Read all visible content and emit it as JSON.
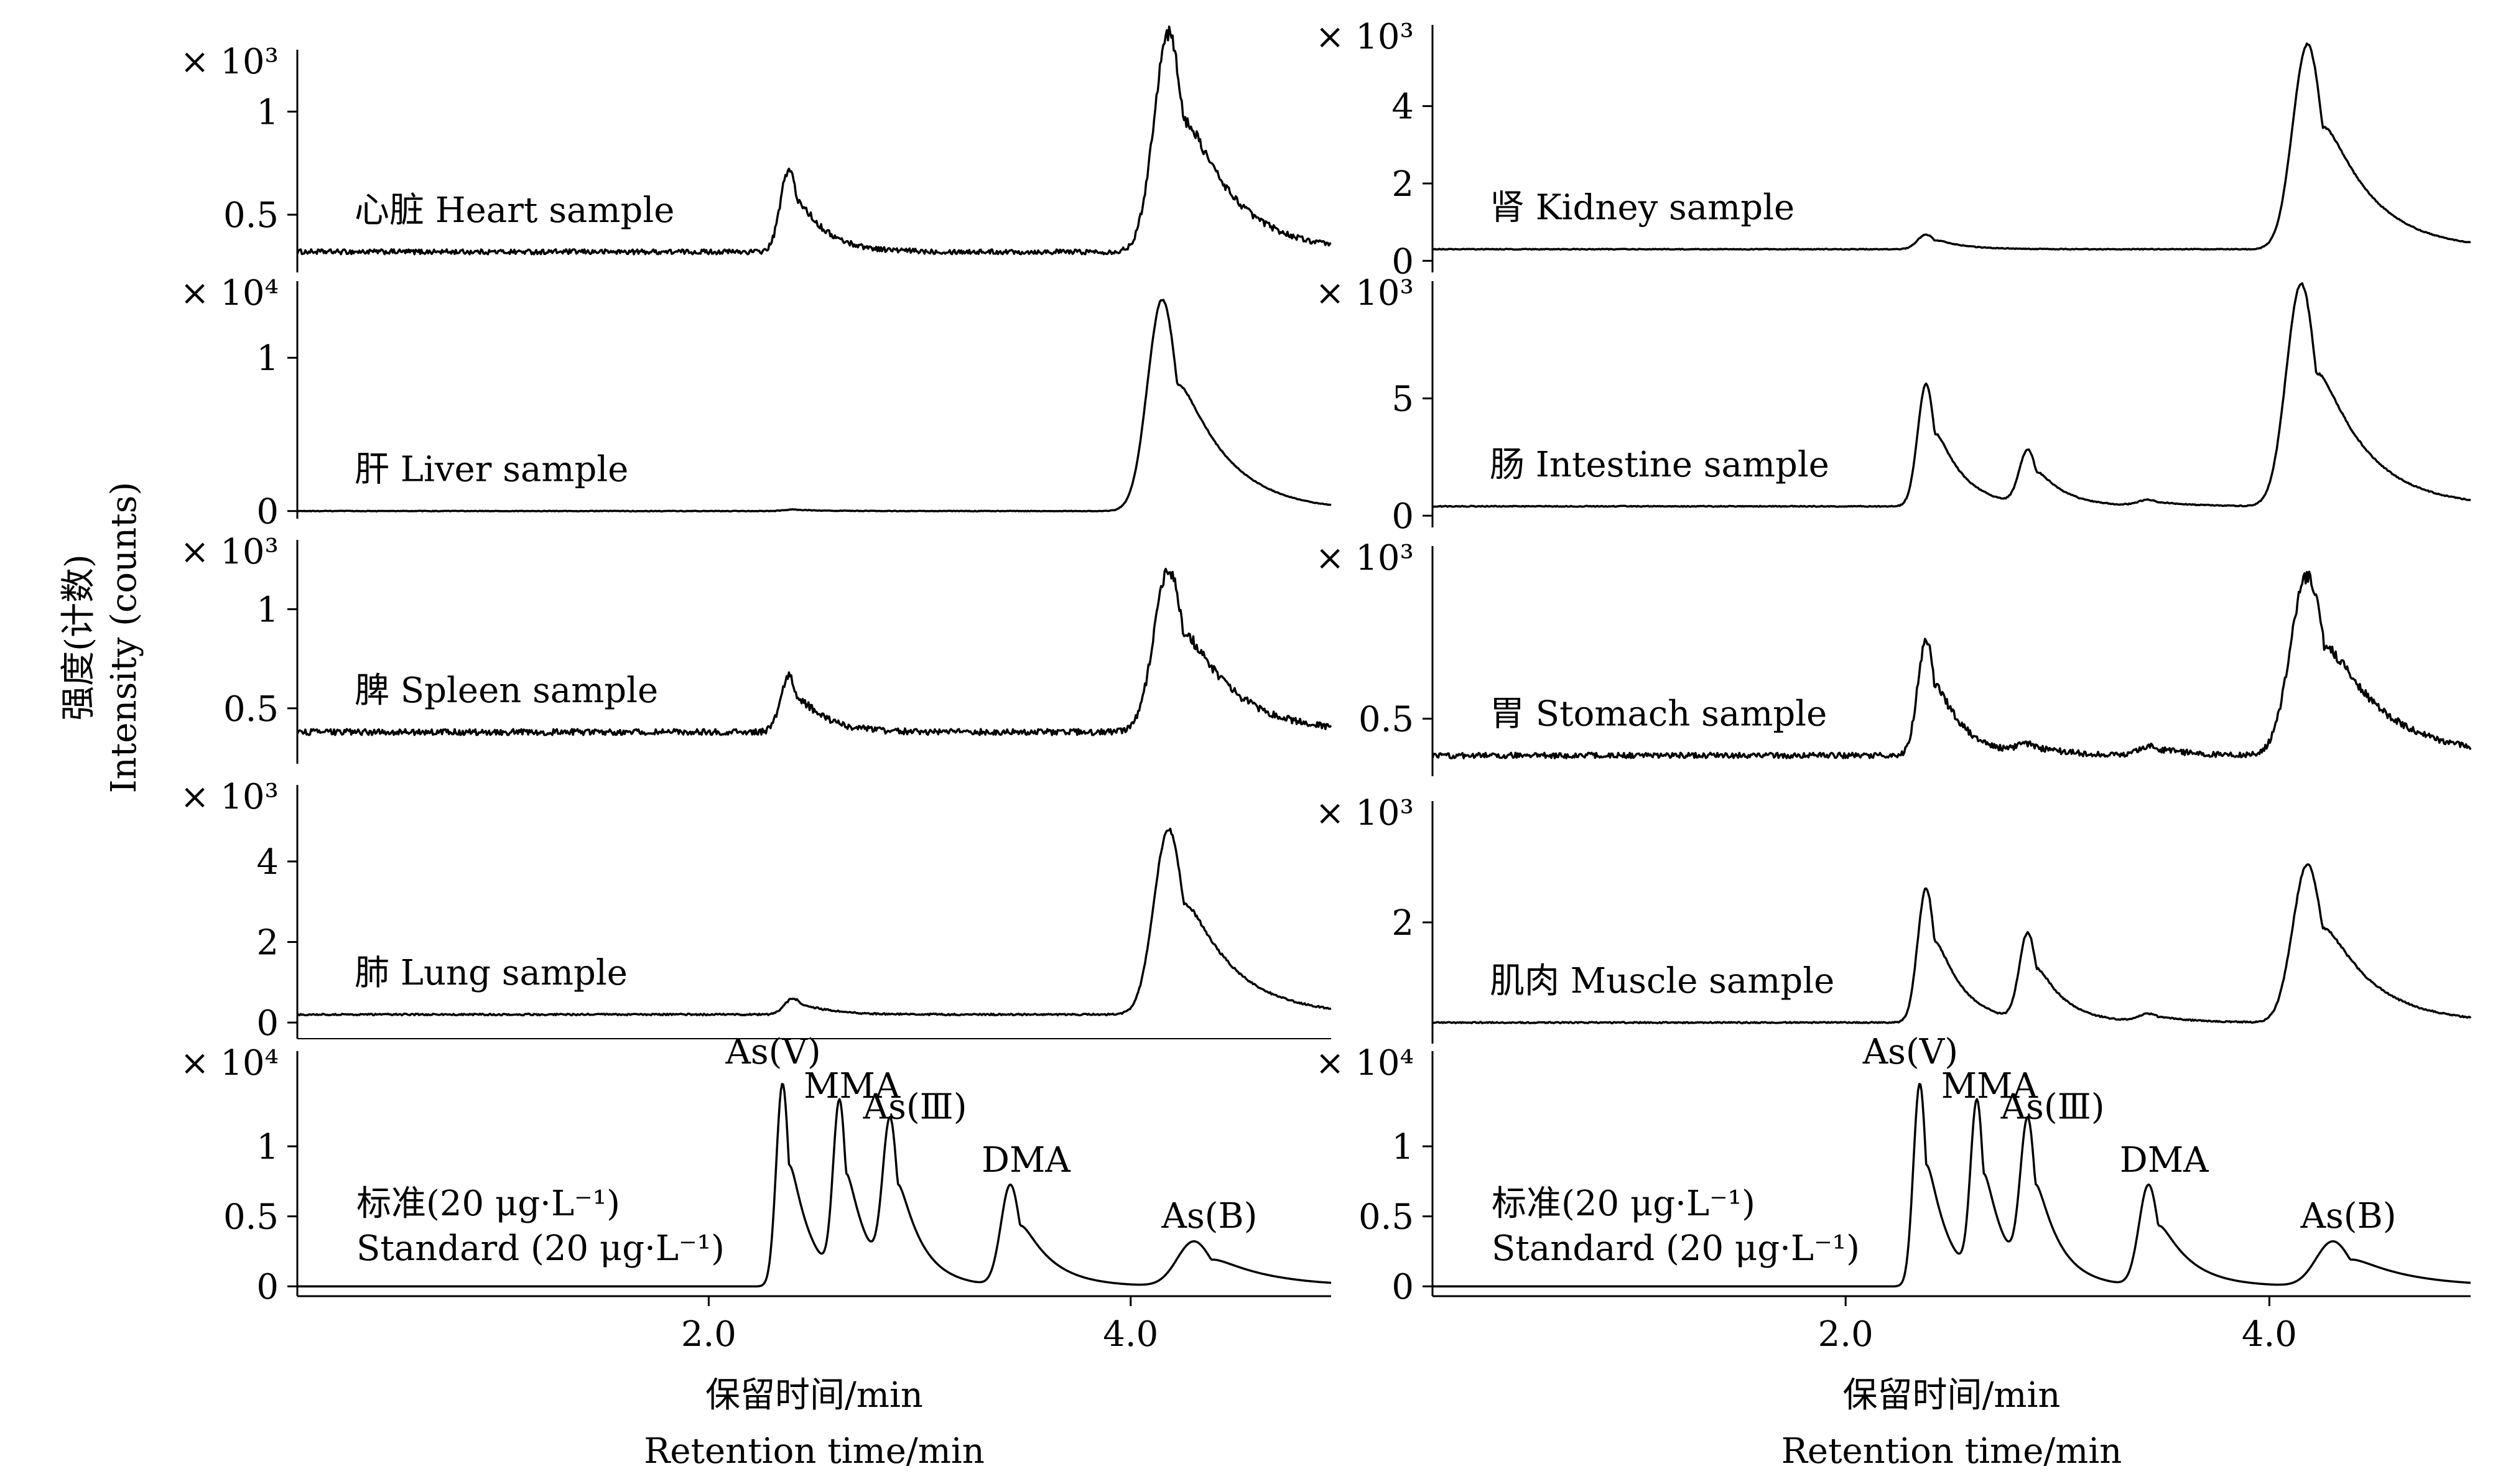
{
  "figure": {
    "y_axis_label_cn": "强度(计数)",
    "y_axis_label_en": "Intensity (counts)"
  },
  "chart_data": [
    {
      "type": "line",
      "column": "left",
      "row": 0,
      "sample_label": "心脏 Heart sample",
      "multiplier_label": "× 10³",
      "yticks": [
        {
          "value": 0.5,
          "label": "0.5"
        },
        {
          "value": 1,
          "label": "1"
        }
      ],
      "ylim": [
        0.22,
        1.3
      ],
      "xlim": [
        0.05,
        4.95
      ],
      "baseline": 0.32,
      "noise": 0.012,
      "peaks": [
        {
          "rt": 2.38,
          "height": 0.4,
          "width": 0.04
        },
        {
          "rt": 4.18,
          "height": 1.06,
          "width": 0.07
        }
      ]
    },
    {
      "type": "line",
      "column": "left",
      "row": 1,
      "sample_label": "肝 Liver sample",
      "multiplier_label": "× 10⁴",
      "yticks": [
        {
          "value": 0,
          "label": "0"
        },
        {
          "value": 1,
          "label": "1"
        }
      ],
      "ylim": [
        -0.05,
        1.5
      ],
      "xlim": [
        0.05,
        4.95
      ],
      "baseline": 0.0,
      "noise": 0.002,
      "peaks": [
        {
          "rt": 2.4,
          "height": 0.01,
          "width": 0.04
        },
        {
          "rt": 4.15,
          "height": 1.38,
          "width": 0.07
        }
      ]
    },
    {
      "type": "line",
      "column": "left",
      "row": 2,
      "sample_label": "脾 Spleen sample",
      "multiplier_label": "× 10³",
      "yticks": [
        {
          "value": 0.5,
          "label": "0.5"
        },
        {
          "value": 1,
          "label": "1"
        }
      ],
      "ylim": [
        0.22,
        1.35
      ],
      "xlim": [
        0.05,
        4.95
      ],
      "baseline": 0.38,
      "noise": 0.015,
      "peaks": [
        {
          "rt": 2.38,
          "height": 0.28,
          "width": 0.04
        },
        {
          "rt": 4.18,
          "height": 0.82,
          "width": 0.07
        }
      ]
    },
    {
      "type": "line",
      "column": "left",
      "row": 3,
      "sample_label": "肺 Lung sample",
      "multiplier_label": "× 10³",
      "yticks": [
        {
          "value": 0,
          "label": "0"
        },
        {
          "value": 2,
          "label": "2"
        },
        {
          "value": 4,
          "label": "4"
        }
      ],
      "ylim": [
        -0.4,
        5.9
      ],
      "xlim": [
        0.05,
        4.95
      ],
      "baseline": 0.2,
      "noise": 0.02,
      "peaks": [
        {
          "rt": 2.4,
          "height": 0.4,
          "width": 0.04
        },
        {
          "rt": 4.18,
          "height": 4.6,
          "width": 0.07
        }
      ]
    },
    {
      "type": "line",
      "column": "left",
      "row": 4,
      "standard": true,
      "sample_label": "标准(20 μg·L⁻¹)",
      "sample_label_2": "Standard (20 μg·L⁻¹)",
      "multiplier_label": "× 10⁴",
      "yticks": [
        {
          "value": 0,
          "label": "0"
        },
        {
          "value": 0.5,
          "label": "0.5"
        },
        {
          "value": 1,
          "label": "1"
        }
      ],
      "ylim": [
        -0.07,
        1.68
      ],
      "xlim": [
        0.05,
        4.95
      ],
      "baseline": 0.0,
      "noise": 0.0,
      "peaks": [
        {
          "rt": 2.35,
          "height": 1.45,
          "width": 0.03,
          "label": "As(Ⅴ)"
        },
        {
          "rt": 2.62,
          "height": 1.25,
          "width": 0.03,
          "label": "MMA"
        },
        {
          "rt": 2.86,
          "height": 1.1,
          "width": 0.035,
          "label": "As(Ⅲ)"
        },
        {
          "rt": 3.43,
          "height": 0.72,
          "width": 0.045,
          "label": "DMA"
        },
        {
          "rt": 4.3,
          "height": 0.32,
          "width": 0.08,
          "label": "As(B)"
        }
      ],
      "xticks": [
        {
          "value": 2.0,
          "label": "2.0"
        },
        {
          "value": 4.0,
          "label": "4.0"
        }
      ],
      "xlabel_cn": "保留时间/min",
      "xlabel_en": "Retention time/min"
    },
    {
      "type": "line",
      "column": "right",
      "row": 0,
      "sample_label": "肾 Kidney sample",
      "multiplier_label": "× 10³",
      "yticks": [
        {
          "value": 0,
          "label": "0"
        },
        {
          "value": 2,
          "label": "2"
        },
        {
          "value": 4,
          "label": "4"
        }
      ],
      "ylim": [
        -0.3,
        6.1
      ],
      "xlim": [
        0.05,
        4.95
      ],
      "baseline": 0.3,
      "noise": 0.01,
      "peaks": [
        {
          "rt": 2.38,
          "height": 0.38,
          "width": 0.04
        },
        {
          "rt": 4.18,
          "height": 5.3,
          "width": 0.07
        }
      ]
    },
    {
      "type": "line",
      "column": "right",
      "row": 1,
      "sample_label": "肠 Intestine sample",
      "multiplier_label": "× 10³",
      "yticks": [
        {
          "value": 0,
          "label": "0"
        },
        {
          "value": 5,
          "label": "5"
        }
      ],
      "ylim": [
        -0.5,
        10.0
      ],
      "xlim": [
        0.05,
        4.95
      ],
      "baseline": 0.4,
      "noise": 0.02,
      "peaks": [
        {
          "rt": 2.38,
          "height": 5.2,
          "width": 0.04
        },
        {
          "rt": 2.86,
          "height": 2.3,
          "width": 0.04
        },
        {
          "rt": 3.43,
          "height": 0.25,
          "width": 0.05
        },
        {
          "rt": 4.15,
          "height": 9.5,
          "width": 0.07
        }
      ]
    },
    {
      "type": "line",
      "column": "right",
      "row": 2,
      "sample_label": "胃 Stomach sample",
      "multiplier_label": "× 10³",
      "yticks": [
        {
          "value": 0.5,
          "label": "0.5"
        }
      ],
      "ylim": [
        0.25,
        1.25
      ],
      "xlim": [
        0.05,
        4.95
      ],
      "baseline": 0.34,
      "noise": 0.012,
      "peaks": [
        {
          "rt": 2.38,
          "height": 0.5,
          "width": 0.04
        },
        {
          "rt": 2.86,
          "height": 0.04,
          "width": 0.05
        },
        {
          "rt": 3.43,
          "height": 0.04,
          "width": 0.05
        },
        {
          "rt": 4.18,
          "height": 0.78,
          "width": 0.08
        }
      ]
    },
    {
      "type": "line",
      "column": "right",
      "row": 3,
      "sample_label": "肌肉 Muscle sample",
      "multiplier_label": "× 10³",
      "yticks": [
        {
          "value": 2,
          "label": "2"
        }
      ],
      "ylim": [
        -0.3,
        4.3
      ],
      "xlim": [
        0.05,
        4.95
      ],
      "baseline": 0.1,
      "noise": 0.012,
      "peaks": [
        {
          "rt": 2.38,
          "height": 2.55,
          "width": 0.04
        },
        {
          "rt": 2.86,
          "height": 1.65,
          "width": 0.04
        },
        {
          "rt": 3.43,
          "height": 0.15,
          "width": 0.05
        },
        {
          "rt": 4.18,
          "height": 3.0,
          "width": 0.07
        }
      ]
    },
    {
      "type": "line",
      "column": "right",
      "row": 4,
      "standard": true,
      "sample_label": "标准(20 μg·L⁻¹)",
      "sample_label_2": "Standard (20 μg·L⁻¹)",
      "multiplier_label": "× 10⁴",
      "yticks": [
        {
          "value": 0,
          "label": "0"
        },
        {
          "value": 0.5,
          "label": "0.5"
        },
        {
          "value": 1,
          "label": "1"
        }
      ],
      "ylim": [
        -0.07,
        1.68
      ],
      "xlim": [
        0.05,
        4.95
      ],
      "baseline": 0.0,
      "noise": 0.0,
      "peaks": [
        {
          "rt": 2.35,
          "height": 1.45,
          "width": 0.03,
          "label": "As(Ⅴ)"
        },
        {
          "rt": 2.62,
          "height": 1.25,
          "width": 0.03,
          "label": "MMA"
        },
        {
          "rt": 2.86,
          "height": 1.1,
          "width": 0.035,
          "label": "As(Ⅲ)"
        },
        {
          "rt": 3.43,
          "height": 0.72,
          "width": 0.045,
          "label": "DMA"
        },
        {
          "rt": 4.3,
          "height": 0.32,
          "width": 0.08,
          "label": "As(B)"
        }
      ],
      "xticks": [
        {
          "value": 2.0,
          "label": "2.0"
        },
        {
          "value": 4.0,
          "label": "4.0"
        }
      ],
      "xlabel_cn": "保留时间/min",
      "xlabel_en": "Retention time/min"
    }
  ]
}
